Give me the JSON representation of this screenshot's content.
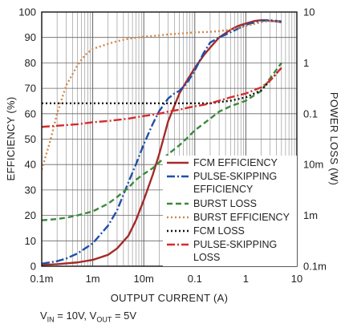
{
  "chart_data": {
    "type": "line",
    "xlabel": "OUTPUT CURRENT (A)",
    "ylabel": "EFFICIENCY (%)",
    "y2label": "POWER LOSS (W)",
    "xscale": "log",
    "y2scale": "log",
    "xlim": [
      0.0001,
      10
    ],
    "ylim": [
      0,
      100
    ],
    "y2lim": [
      0.0001,
      10
    ],
    "x_ticks": [
      "0.1m",
      "1m",
      "10m",
      "0.1",
      "1",
      "10"
    ],
    "y_ticks": [
      "0",
      "10",
      "20",
      "30",
      "40",
      "50",
      "60",
      "70",
      "80",
      "90",
      "100"
    ],
    "y2_ticks": [
      "0.1m",
      "1m",
      "10m",
      "0.1",
      "1",
      "10"
    ],
    "grid": true,
    "legend_position": "right-center",
    "series": [
      {
        "name": "FCM EFFICIENCY",
        "axis": "left",
        "color": "#a52a2a",
        "style": "solid",
        "x": [
          0.0001,
          0.0002,
          0.0005,
          0.001,
          0.002,
          0.003,
          0.005,
          0.007,
          0.01,
          0.015,
          0.02,
          0.03,
          0.05,
          0.07,
          0.1,
          0.15,
          0.2,
          0.3,
          0.5,
          0.7,
          1,
          1.5,
          2,
          2.5,
          3,
          4,
          5
        ],
        "values": [
          0.5,
          0.8,
          1.5,
          2.5,
          4.5,
          7,
          12,
          18,
          26,
          36,
          44,
          57,
          68,
          73,
          78,
          83,
          86,
          90,
          93,
          94.5,
          95.5,
          96.5,
          96.8,
          96.8,
          96.5,
          96.3,
          96
        ]
      },
      {
        "name": "PULSE-SKIPPING EFFICIENCY",
        "axis": "left",
        "color": "#1f4fa8",
        "style": "dashdot",
        "x": [
          0.0001,
          0.0002,
          0.0003,
          0.0005,
          0.001,
          0.002,
          0.003,
          0.005,
          0.007,
          0.01,
          0.015,
          0.02,
          0.03,
          0.04,
          0.05,
          0.07,
          0.1,
          0.15,
          0.2,
          0.3,
          0.5,
          1,
          2,
          3,
          5
        ],
        "values": [
          1,
          2,
          3,
          5,
          9,
          16,
          22,
          33,
          40,
          48,
          56,
          61,
          66,
          68,
          69,
          72,
          77,
          84,
          88,
          90,
          92,
          95,
          96.5,
          96.8,
          96.3
        ]
      },
      {
        "name": "BURST LOSS",
        "axis": "right",
        "color": "#3a8a3a",
        "style": "dashed",
        "x": [
          0.0001,
          0.0002,
          0.0003,
          0.0005,
          0.001,
          0.002,
          0.003,
          0.005,
          0.007,
          0.01,
          0.015,
          0.02,
          0.03,
          0.05,
          0.07,
          0.1,
          0.2,
          0.3,
          0.5,
          1,
          2,
          3,
          5
        ],
        "values": [
          0.0008,
          0.00085,
          0.0009,
          0.001,
          0.0012,
          0.0017,
          0.0023,
          0.0035,
          0.005,
          0.0065,
          0.0085,
          0.011,
          0.016,
          0.024,
          0.033,
          0.047,
          0.08,
          0.11,
          0.14,
          0.18,
          0.28,
          0.5,
          1
        ]
      },
      {
        "name": "BURST EFFICIENCY",
        "axis": "left",
        "color": "#d2884a",
        "style": "dotted",
        "x": [
          0.0001,
          0.00015,
          0.0002,
          0.0003,
          0.0005,
          0.0007,
          0.001,
          0.002,
          0.003,
          0.005,
          0.01,
          0.02,
          0.03,
          0.05,
          0.1,
          0.2,
          0.3,
          0.5,
          1,
          2,
          3,
          5
        ],
        "values": [
          38,
          50,
          60,
          71,
          79,
          83,
          85.5,
          87.5,
          88.5,
          89.5,
          90.3,
          90.8,
          91.2,
          91.5,
          92,
          92.2,
          92.5,
          93,
          94.5,
          96,
          96.5,
          96.3
        ]
      },
      {
        "name": "FCM LOSS",
        "axis": "right",
        "color": "#111111",
        "style": "dotted",
        "x": [
          0.0001,
          0.2,
          0.3,
          0.5,
          1,
          2,
          3,
          5
        ],
        "values": [
          0.16,
          0.16,
          0.17,
          0.18,
          0.21,
          0.29,
          0.45,
          0.8
        ]
      },
      {
        "name": "PULSE-SKIPPING LOSS",
        "axis": "right",
        "color": "#d42c2c",
        "style": "dashdot",
        "x": [
          0.0001,
          0.0002,
          0.0005,
          0.001,
          0.002,
          0.005,
          0.01,
          0.02,
          0.03,
          0.05,
          0.07,
          0.1,
          0.15,
          0.2,
          0.3,
          0.5,
          1,
          2,
          3,
          5
        ],
        "values": [
          0.055,
          0.058,
          0.062,
          0.068,
          0.072,
          0.08,
          0.09,
          0.1,
          0.11,
          0.12,
          0.13,
          0.14,
          0.15,
          0.16,
          0.18,
          0.21,
          0.25,
          0.33,
          0.45,
          0.8
        ]
      }
    ],
    "legend": [
      {
        "series": 0,
        "lines": [
          "FCM EFFICIENCY"
        ]
      },
      {
        "series": 1,
        "lines": [
          "PULSE-SKIPPING",
          "EFFICIENCY"
        ]
      },
      {
        "series": 2,
        "lines": [
          "BURST LOSS"
        ]
      },
      {
        "series": 3,
        "lines": [
          "BURST EFFICIENCY"
        ]
      },
      {
        "series": 4,
        "lines": [
          "FCM LOSS"
        ]
      },
      {
        "series": 5,
        "lines": [
          "PULSE-SKIPPING",
          "LOSS"
        ]
      }
    ]
  },
  "conditions": {
    "vin_sym": "V",
    "vin_sub": "IN",
    "vin_val": " = 10V, ",
    "vout_sym": "V",
    "vout_sub": "OUT",
    "vout_val": " = 5V"
  }
}
